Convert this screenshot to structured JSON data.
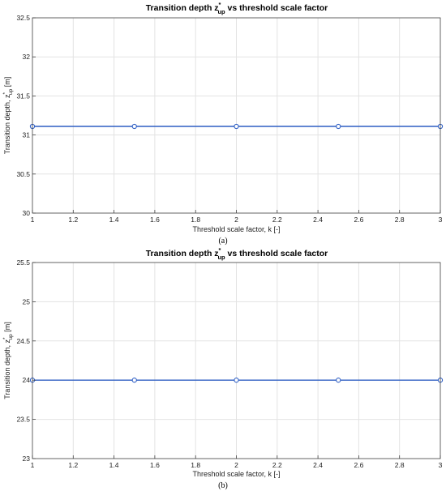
{
  "panels": [
    {
      "caption": "(a)",
      "chart_data": {
        "type": "line",
        "title": "Transition depth z",
        "title_superscript": "*",
        "title_subscript": "up",
        "title_suffix": " vs threshold scale factor",
        "xlabel": "Threshold scale factor, k [-]",
        "ylabel": "Transition depth, z",
        "ylabel_superscript": "*",
        "ylabel_subscript": "up",
        "ylabel_suffix": " [m]",
        "xlim": [
          1,
          3
        ],
        "ylim": [
          30,
          32.5
        ],
        "xticks": [
          1,
          1.2,
          1.4,
          1.6,
          1.8,
          2,
          2.2,
          2.4,
          2.6,
          2.8,
          3
        ],
        "xtick_labels": [
          "1",
          "1.2",
          "1.4",
          "1.6",
          "1.8",
          "2",
          "2.2",
          "2.4",
          "2.6",
          "2.8",
          "3"
        ],
        "yticks": [
          30,
          30.5,
          31,
          31.5,
          32,
          32.5
        ],
        "ytick_labels": [
          "30",
          "30.5",
          "31",
          "31.5",
          "32",
          "32.5"
        ],
        "grid": true,
        "series": [
          {
            "x": [
              1,
              1.5,
              2,
              2.5,
              3
            ],
            "y": [
              31.11,
              31.11,
              31.11,
              31.11,
              31.11
            ],
            "color": "#2f5fc4",
            "marker": "circle"
          }
        ]
      }
    },
    {
      "caption": "(b)",
      "chart_data": {
        "type": "line",
        "title": "Transition depth z",
        "title_superscript": "*",
        "title_subscript": "up",
        "title_suffix": " vs threshold scale factor",
        "xlabel": "Threshold scale factor, k [-]",
        "ylabel": "Transition depth, z",
        "ylabel_superscript": "*",
        "ylabel_subscript": "up",
        "ylabel_suffix": " [m]",
        "xlim": [
          1,
          3
        ],
        "ylim": [
          23,
          25.5
        ],
        "xticks": [
          1,
          1.2,
          1.4,
          1.6,
          1.8,
          2,
          2.2,
          2.4,
          2.6,
          2.8,
          3
        ],
        "xtick_labels": [
          "1",
          "1.2",
          "1.4",
          "1.6",
          "1.8",
          "2",
          "2.2",
          "2.4",
          "2.6",
          "2.8",
          "3"
        ],
        "yticks": [
          23,
          23.5,
          24,
          24.5,
          25,
          25.5
        ],
        "ytick_labels": [
          "23",
          "23.5",
          "24",
          "24.5",
          "25",
          "25.5"
        ],
        "grid": true,
        "series": [
          {
            "x": [
              1,
              1.5,
              2,
              2.5,
              3
            ],
            "y": [
              24,
              24,
              24,
              24,
              24
            ],
            "color": "#2f5fc4",
            "marker": "circle"
          }
        ]
      }
    }
  ]
}
